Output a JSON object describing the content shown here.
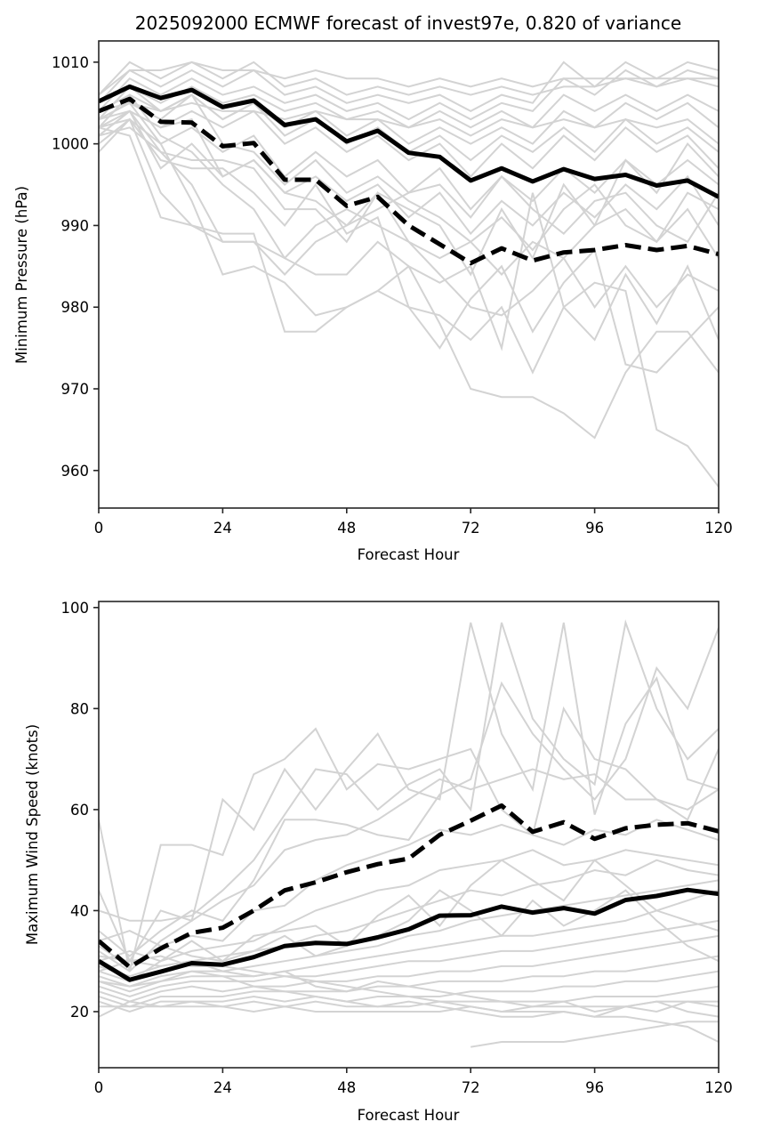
{
  "chart_data": [
    {
      "type": "line",
      "title": "2025092000 ECMWF forecast of invest97e, 0.820 of variance",
      "xlabel": "Forecast Hour",
      "ylabel": "Minimum Pressure (hPa)",
      "xlim": [
        0,
        120
      ],
      "ylim": [
        955.4,
        1012.6
      ],
      "xticks": [
        0,
        24,
        48,
        72,
        96,
        120
      ],
      "yticks": [
        960,
        970,
        980,
        990,
        1000,
        1010
      ],
      "grid": false,
      "legend": "none",
      "x": [
        0,
        6,
        12,
        18,
        24,
        30,
        36,
        42,
        48,
        54,
        60,
        66,
        72,
        78,
        84,
        90,
        96,
        102,
        108,
        114,
        120
      ],
      "series": [
        {
          "name": "solid-black",
          "style": "solid",
          "color": "#000000",
          "values": [
            1005.2,
            1007.0,
            1005.6,
            1006.6,
            1004.5,
            1005.3,
            1002.3,
            1003.0,
            1000.3,
            1001.6,
            998.9,
            998.4,
            995.5,
            997.0,
            995.4,
            996.9,
            995.7,
            996.2,
            994.9,
            995.5,
            993.5
          ]
        },
        {
          "name": "dashed-black",
          "style": "dashed",
          "color": "#000000",
          "values": [
            1004.0,
            1005.5,
            1002.7,
            1002.6,
            999.7,
            1000.1,
            995.6,
            995.6,
            992.4,
            993.5,
            990.0,
            987.7,
            985.4,
            987.2,
            985.7,
            986.7,
            987.0,
            987.6,
            987.0,
            987.5,
            986.5
          ]
        }
      ],
      "ensemble_members": {
        "color": "#d3d3d3",
        "values": [
          [
            1006,
            1010,
            1008,
            1010,
            1008,
            1010,
            1007,
            1008,
            1006,
            1007,
            1006,
            1007,
            1006,
            1007,
            1006,
            1007,
            1007,
            1008,
            1007,
            1008,
            1007
          ],
          [
            1005,
            1009,
            1007,
            1009,
            1007,
            1009,
            1006,
            1007,
            1005,
            1006,
            1005,
            1006,
            1004,
            1006,
            1005,
            1010,
            1007,
            1010,
            1008,
            1010,
            1009
          ],
          [
            1004,
            1008,
            1006,
            1008,
            1006,
            1007,
            1005,
            1006,
            1004,
            1005,
            1003,
            1005,
            1003,
            1005,
            1004,
            1008,
            1006,
            1009,
            1007,
            1009,
            1008
          ],
          [
            1006,
            1009,
            1009,
            1010,
            1009,
            1009,
            1008,
            1009,
            1008,
            1008,
            1007,
            1008,
            1007,
            1008,
            1007,
            1008,
            1008,
            1008,
            1008,
            1008,
            1008
          ],
          [
            1003,
            1007,
            1005,
            1007,
            1005,
            1006,
            1004,
            1005,
            1003,
            1004,
            1002,
            1004,
            1002,
            1004,
            1002,
            1006,
            1004,
            1006,
            1004,
            1006,
            1004
          ],
          [
            1002,
            1006,
            1004,
            1006,
            1003,
            1005,
            1002,
            1004,
            1001,
            1003,
            1000,
            1002,
            1000,
            1002,
            1000,
            1004,
            1002,
            1005,
            1003,
            1005,
            1002
          ],
          [
            1004,
            1005,
            1004,
            1005,
            1004,
            1004,
            1003,
            1004,
            1003,
            1003,
            1002,
            1003,
            1001,
            1003,
            1002,
            1003,
            1002,
            1003,
            1002,
            1003,
            1000
          ],
          [
            1001,
            1004,
            1002,
            1004,
            1002,
            1004,
            1000,
            1002,
            999,
            1001,
            998,
            1000,
            996,
            1000,
            997,
            1001,
            998,
            1002,
            999,
            1001,
            997
          ],
          [
            1003,
            1005,
            1003,
            1006,
            1003,
            1005,
            1001,
            1003,
            1000,
            1002,
            999,
            1001,
            998,
            1001,
            999,
            1002,
            999,
            1003,
            1000,
            1002,
            999
          ],
          [
            1000,
            1003,
            1000,
            1002,
            999,
            1001,
            996,
            999,
            996,
            998,
            994,
            997,
            992,
            996,
            993,
            997,
            994,
            998,
            995,
            998,
            995
          ],
          [
            1002,
            1004,
            997,
            1000,
            996,
            998,
            994,
            996,
            993,
            995,
            991,
            994,
            989,
            993,
            990,
            994,
            991,
            995,
            992,
            996,
            990
          ],
          [
            1001,
            1002,
            999,
            995,
            988,
            988,
            986,
            990,
            992,
            990,
            988,
            986,
            988,
            984,
            988,
            986,
            990,
            992,
            988,
            994,
            992
          ],
          [
            999,
            1003,
            994,
            990,
            988,
            988,
            984,
            988,
            990,
            994,
            992,
            990,
            984,
            992,
            986,
            995,
            990,
            998,
            994,
            1000,
            996
          ],
          [
            1002,
            1001,
            991,
            990,
            989,
            989,
            977,
            977,
            980,
            982,
            985,
            978,
            970,
            969,
            969,
            967,
            964,
            972,
            977,
            977,
            972
          ],
          [
            1003,
            1005,
            1000,
            993,
            984,
            985,
            983,
            979,
            980,
            982,
            980,
            979,
            976,
            980,
            972,
            980,
            976,
            984,
            978,
            985,
            976
          ],
          [
            1004,
            1006,
            1001,
            999,
            995,
            992,
            986,
            984,
            984,
            988,
            985,
            983,
            985,
            975,
            994,
            980,
            983,
            982,
            965,
            963,
            958
          ],
          [
            1002,
            1003,
            998,
            997,
            997,
            994,
            990,
            995,
            989,
            991,
            980,
            975,
            981,
            985,
            977,
            983,
            987,
            973,
            972,
            976,
            980
          ],
          [
            1003,
            1004,
            999,
            998,
            998,
            997,
            992,
            992,
            988,
            994,
            988,
            984,
            980,
            979,
            982,
            986,
            980,
            985,
            980,
            984,
            982
          ],
          [
            1005,
            1007,
            1004,
            1006,
            1000,
            999,
            995,
            998,
            994,
            996,
            993,
            991,
            988,
            991,
            987,
            992,
            995,
            990,
            988,
            992,
            986
          ],
          [
            1001,
            1004,
            1002,
            1003,
            996,
            998,
            994,
            993,
            990,
            992,
            994,
            995,
            991,
            996,
            992,
            989,
            993,
            994,
            990,
            988,
            994
          ]
        ]
      }
    },
    {
      "type": "line",
      "title": "",
      "xlabel": "Forecast Hour",
      "ylabel": "Maximum Wind Speed (knots)",
      "xlim": [
        0,
        120
      ],
      "ylim": [
        8.9,
        101.2
      ],
      "xticks": [
        0,
        24,
        48,
        72,
        96,
        120
      ],
      "yticks": [
        20,
        40,
        60,
        80,
        100
      ],
      "grid": false,
      "legend": "none",
      "x": [
        0,
        6,
        12,
        18,
        24,
        30,
        36,
        42,
        48,
        54,
        60,
        66,
        72,
        78,
        84,
        90,
        96,
        102,
        108,
        114,
        120
      ],
      "series": [
        {
          "name": "solid-black",
          "style": "solid",
          "color": "#000000",
          "values": [
            30.0,
            26.3,
            27.9,
            29.6,
            29.3,
            30.8,
            33.0,
            33.6,
            33.4,
            34.7,
            36.3,
            39.0,
            39.1,
            40.8,
            39.6,
            40.5,
            39.4,
            42.1,
            42.9,
            44.1,
            43.3
          ]
        },
        {
          "name": "dashed-black",
          "style": "dashed",
          "color": "#000000",
          "values": [
            34.0,
            28.8,
            32.5,
            35.6,
            36.6,
            40.0,
            44.0,
            45.6,
            47.6,
            49.2,
            50.3,
            55.0,
            57.8,
            60.8,
            55.6,
            57.5,
            54.2,
            56.3,
            57.0,
            57.3,
            55.7
          ]
        }
      ],
      "ensemble_members": {
        "color": "#d3d3d3",
        "values": [
          [
            58,
            28,
            53,
            53,
            51,
            67,
            70,
            76,
            64,
            69,
            68,
            70,
            72,
            60,
            55,
            80,
            70,
            68,
            62,
            60,
            64
          ],
          [
            44,
            30,
            40,
            38,
            62,
            56,
            68,
            60,
            68,
            75,
            64,
            62,
            97,
            75,
            64,
            97,
            59,
            77,
            86,
            66,
            64
          ],
          [
            40,
            38,
            38,
            39,
            44,
            50,
            59,
            68,
            67,
            60,
            65,
            68,
            60,
            97,
            78,
            70,
            65,
            97,
            80,
            70,
            76
          ],
          [
            36,
            31,
            36,
            40,
            38,
            46,
            58,
            58,
            57,
            55,
            54,
            63,
            66,
            85,
            75,
            68,
            62,
            70,
            88,
            80,
            96
          ],
          [
            32,
            28,
            34,
            38,
            42,
            45,
            52,
            54,
            55,
            58,
            62,
            66,
            64,
            66,
            68,
            66,
            67,
            62,
            62,
            58,
            72
          ],
          [
            34,
            36,
            33,
            35,
            34,
            40,
            41,
            46,
            49,
            51,
            53,
            56,
            55,
            57,
            55,
            53,
            56,
            55,
            58,
            56,
            54
          ],
          [
            30,
            32,
            30,
            32,
            33,
            34,
            37,
            40,
            42,
            44,
            45,
            48,
            49,
            50,
            52,
            49,
            50,
            52,
            51,
            50,
            49
          ],
          [
            28,
            30,
            29,
            30,
            31,
            32,
            33,
            35,
            36,
            38,
            40,
            42,
            44,
            43,
            45,
            46,
            48,
            47,
            50,
            48,
            47
          ],
          [
            27,
            25,
            27,
            28,
            28,
            29,
            30,
            31,
            32,
            33,
            35,
            36,
            38,
            39,
            40,
            41,
            42,
            43,
            44,
            45,
            46
          ],
          [
            26,
            24,
            26,
            27,
            27,
            27,
            28,
            29,
            30,
            31,
            32,
            33,
            34,
            35,
            35,
            36,
            37,
            38,
            40,
            42,
            44
          ],
          [
            25,
            23,
            25,
            26,
            26,
            26,
            27,
            27,
            28,
            29,
            30,
            30,
            31,
            32,
            32,
            33,
            34,
            35,
            36,
            37,
            38
          ],
          [
            24,
            22,
            24,
            25,
            24,
            25,
            25,
            26,
            26,
            27,
            27,
            28,
            28,
            29,
            29,
            30,
            31,
            32,
            33,
            34,
            35
          ],
          [
            23,
            21,
            23,
            23,
            23,
            24,
            24,
            24,
            24,
            25,
            25,
            26,
            26,
            26,
            27,
            27,
            28,
            28,
            29,
            30,
            31
          ],
          [
            22,
            20,
            22,
            22,
            22,
            23,
            22,
            23,
            22,
            23,
            23,
            23,
            24,
            24,
            24,
            25,
            25,
            26,
            26,
            27,
            28
          ],
          [
            21,
            21,
            21,
            22,
            21,
            22,
            21,
            22,
            21,
            21,
            21,
            22,
            22,
            22,
            22,
            22,
            23,
            23,
            23,
            24,
            25
          ],
          [
            19,
            22,
            21,
            21,
            21,
            20,
            21,
            20,
            20,
            20,
            20,
            20,
            21,
            20,
            21,
            21,
            21,
            21,
            22,
            22,
            22
          ],
          [
            31,
            30,
            31,
            29,
            29,
            28,
            27,
            26,
            25,
            24,
            23,
            22,
            21,
            20,
            20,
            20,
            19,
            19,
            18,
            17,
            14
          ],
          [
            29,
            27,
            29,
            30,
            28,
            27,
            28,
            25,
            24,
            26,
            25,
            24,
            23,
            22,
            21,
            22,
            20,
            21,
            22,
            20,
            19
          ],
          [
            26,
            25,
            26,
            28,
            27,
            25,
            24,
            23,
            22,
            21,
            22,
            21,
            20,
            19,
            19,
            20,
            19,
            21,
            20,
            22,
            21
          ],
          [
            null,
            null,
            null,
            null,
            null,
            null,
            null,
            null,
            null,
            null,
            null,
            null,
            13,
            14,
            14,
            14,
            15,
            16,
            17,
            18,
            18
          ],
          [
            33,
            29,
            33,
            31,
            30,
            35,
            36,
            37,
            33,
            39,
            43,
            37,
            45,
            50,
            46,
            42,
            50,
            45,
            40,
            38,
            36
          ],
          [
            28,
            26,
            30,
            34,
            30,
            32,
            35,
            31,
            33,
            35,
            38,
            44,
            40,
            35,
            42,
            37,
            40,
            44,
            38,
            33,
            30
          ]
        ]
      }
    }
  ]
}
